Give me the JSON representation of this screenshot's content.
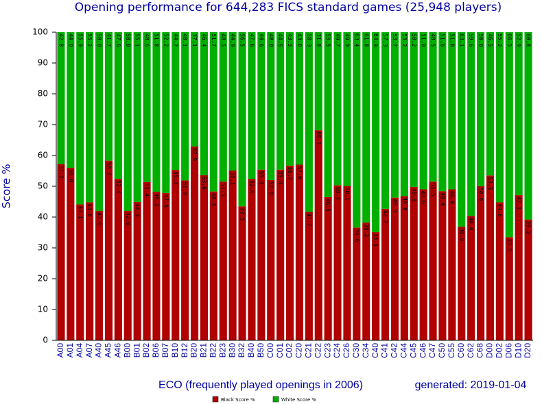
{
  "chart_data": {
    "type": "bar",
    "stacked": true,
    "title": "Opening performance for 644,283 FICS standard games (25,948 players)",
    "x_label": "ECO (frequently played openings in 2006)",
    "y_label": "Score %",
    "annotation": "generated: 2019-01-04",
    "categories": [
      "A00",
      "A01",
      "A04",
      "A07",
      "A40",
      "A45",
      "A46",
      "B00",
      "B01",
      "B02",
      "B06",
      "B07",
      "B10",
      "B12",
      "B20",
      "B21",
      "B22",
      "B23",
      "B30",
      "B32",
      "B40",
      "B50",
      "C00",
      "C01",
      "C02",
      "C20",
      "C21",
      "C22",
      "C23",
      "C24",
      "C26",
      "C30",
      "C34",
      "C40",
      "C41",
      "C42",
      "C44",
      "C45",
      "C46",
      "C47",
      "C50",
      "C55",
      "C60",
      "C62",
      "C68",
      "D00",
      "D02",
      "D06",
      "D10",
      "D20"
    ],
    "series": [
      {
        "name": "Black Score %",
        "color": "#b00000",
        "values": [
          57.2,
          56.0,
          44.1,
          44.8,
          42.0,
          58.3,
          52.4,
          42.0,
          44.9,
          51.4,
          48.2,
          47.8,
          55.3,
          51.9,
          62.9,
          53.6,
          48.3,
          51.5,
          55.1,
          43.5,
          52.4,
          55.4,
          52.0,
          55.4,
          56.7,
          57.0,
          41.7,
          68.2,
          46.5,
          50.3,
          50.1,
          36.6,
          38.2,
          35.1,
          42.7,
          46.3,
          46.8,
          49.8,
          49.0,
          51.5,
          48.4,
          49.0,
          36.9,
          40.4,
          50.0,
          53.5,
          44.8,
          33.5,
          47.1,
          39.2
        ],
        "value_labels": [
          "57.2",
          "56.0",
          "44.1",
          "44.8",
          "42.0",
          "58.3",
          "52.4",
          "42.0",
          "44.9",
          "51.4",
          "48.2",
          "47.8",
          "55.3",
          "51.9",
          "62.9",
          "53.6",
          "48.3",
          "51.5",
          "55.1",
          "43.5",
          "52.4",
          "55.4",
          "52.0",
          "55.4",
          "56.7",
          "57.0",
          "41.7",
          "68.2",
          "46.5",
          "50.3",
          "50.1",
          "36.6",
          "38.2",
          "35.1",
          "42.7",
          "46.3",
          "46.8",
          "49.8",
          "49.0",
          "51.5",
          "48.4",
          "49.0",
          "36.9",
          "40.4",
          "50.0",
          "53.5",
          "44.8",
          "33.5",
          "47.1",
          "39.2"
        ]
      },
      {
        "name": "White Score %",
        "color": "#00b000",
        "values": [
          42.8,
          44.0,
          55.9,
          55.2,
          58.0,
          41.7,
          47.6,
          58.0,
          55.1,
          48.6,
          51.8,
          52.2,
          44.7,
          48.1,
          37.1,
          46.4,
          51.7,
          48.5,
          44.9,
          56.5,
          47.6,
          44.6,
          48.0,
          44.6,
          43.3,
          43.0,
          58.3,
          31.8,
          53.5,
          49.7,
          49.9,
          63.4,
          61.8,
          64.9,
          57.3,
          53.7,
          53.2,
          50.2,
          51.0,
          48.5,
          51.6,
          51.0,
          63.1,
          59.6,
          50.0,
          46.5,
          55.2,
          66.5,
          52.9,
          60.8
        ],
        "value_labels": [
          "42.8",
          "44.0",
          "55.9",
          "55.2",
          "58.0",
          "41.7",
          "47.6",
          "58.0",
          "55.1",
          "48.6",
          "51.8",
          "52.2",
          "44.7",
          "48.1",
          "37.1",
          "46.4",
          "51.7",
          "48.5",
          "44.9",
          "56.5",
          "47.6",
          "44.6",
          "48.0",
          "44.6",
          "43.3",
          "43.0",
          "58.3",
          "31.8",
          "53.5",
          "49.7",
          "49.9",
          "63.4",
          "61.8",
          "64.9",
          "57.3",
          "53.7",
          "53.2",
          "50.2",
          "51.0",
          "48.5",
          "51.6",
          "51.0",
          "63.1",
          "59.6",
          "50.0",
          "46.5",
          "55.2",
          "66.5",
          "52.9",
          "60.8"
        ]
      }
    ],
    "ylim": [
      0,
      100
    ],
    "yticks": [
      0,
      10,
      20,
      30,
      40,
      50,
      60,
      70,
      80,
      90,
      100
    ],
    "grid": false
  }
}
